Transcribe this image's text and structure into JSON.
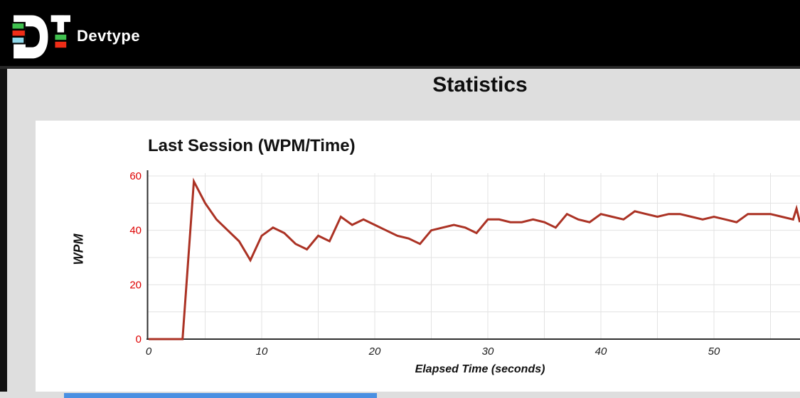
{
  "header": {
    "brand": "Devtype",
    "logo": {
      "letters": "DT",
      "bar_green": "#3fbf4e",
      "bar_red": "#ef2d17",
      "bar_cyan": "#8fd8ea",
      "letter_color": "#ffffff"
    }
  },
  "page": {
    "title": "Statistics",
    "background": "#dedede",
    "header_background": "#000000"
  },
  "card": {
    "title": "Last Session (WPM/Time)",
    "background": "#ffffff"
  },
  "chart_data": {
    "type": "line",
    "title": "Last Session (WPM/Time)",
    "xlabel": "Elapsed Time (seconds)",
    "ylabel": "WPM",
    "xlim": [
      0,
      57.6
    ],
    "ylim": [
      0,
      60
    ],
    "xticks": [
      0,
      10,
      20,
      30,
      40,
      50
    ],
    "yticks": [
      0,
      20,
      40,
      60
    ],
    "x_gridline_step": 5,
    "y_gridline_step": 10,
    "grid": true,
    "legend": "none",
    "line_color": "#ab3224",
    "gridline_color": "#e3e3e3",
    "axis_color": "#2f2f2f",
    "ytick_color": "#de0000",
    "xtick_color": "#1a1a1a",
    "series": [
      {
        "name": "WPM",
        "points": [
          [
            0,
            0
          ],
          [
            1,
            0
          ],
          [
            2,
            0
          ],
          [
            3,
            0
          ],
          [
            4,
            58
          ],
          [
            5,
            50
          ],
          [
            6,
            44
          ],
          [
            7,
            40
          ],
          [
            8,
            36
          ],
          [
            9,
            29
          ],
          [
            10,
            38
          ],
          [
            11,
            41
          ],
          [
            12,
            39
          ],
          [
            13,
            35
          ],
          [
            14,
            33
          ],
          [
            15,
            38
          ],
          [
            16,
            36
          ],
          [
            17,
            45
          ],
          [
            18,
            42
          ],
          [
            19,
            44
          ],
          [
            20,
            42
          ],
          [
            21,
            40
          ],
          [
            22,
            38
          ],
          [
            23,
            37
          ],
          [
            24,
            35
          ],
          [
            25,
            40
          ],
          [
            26,
            41
          ],
          [
            27,
            42
          ],
          [
            28,
            41
          ],
          [
            29,
            39
          ],
          [
            30,
            44
          ],
          [
            31,
            44
          ],
          [
            32,
            43
          ],
          [
            33,
            43
          ],
          [
            34,
            44
          ],
          [
            35,
            43
          ],
          [
            36,
            41
          ],
          [
            37,
            46
          ],
          [
            38,
            44
          ],
          [
            39,
            43
          ],
          [
            40,
            46
          ],
          [
            41,
            45
          ],
          [
            42,
            44
          ],
          [
            43,
            47
          ],
          [
            44,
            46
          ],
          [
            45,
            45
          ],
          [
            46,
            46
          ],
          [
            47,
            46
          ],
          [
            48,
            45
          ],
          [
            49,
            44
          ],
          [
            50,
            45
          ],
          [
            51,
            44
          ],
          [
            52,
            43
          ],
          [
            53,
            46
          ],
          [
            54,
            46
          ],
          [
            55,
            46
          ],
          [
            56,
            45
          ],
          [
            57,
            44
          ],
          [
            57.3,
            48
          ],
          [
            57.6,
            43
          ]
        ]
      }
    ]
  },
  "footer": {
    "partial_bar_color": "#4a90e2"
  }
}
